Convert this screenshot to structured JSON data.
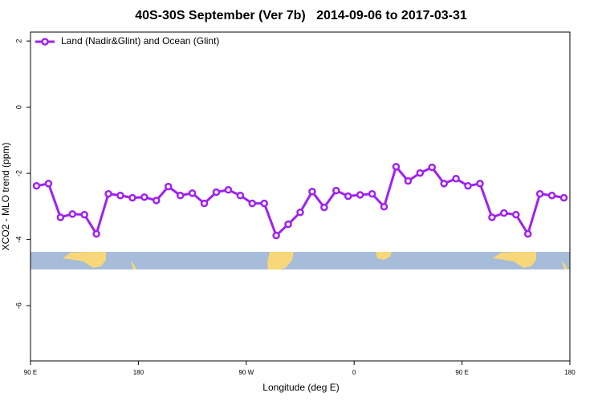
{
  "chart_data": {
    "type": "line",
    "title": "40S-30S September (Ver 7b)   2014-09-06 to 2017-03-31",
    "x_label": "Longitude (deg E)",
    "y_label": "XCO2 - MLO trend (ppm)",
    "x": [
      95,
      105,
      115,
      125,
      135,
      145,
      155,
      165,
      175,
      185,
      195,
      205,
      215,
      225,
      235,
      245,
      255,
      265,
      275,
      285,
      295,
      305,
      315,
      325,
      335,
      345,
      355,
      365,
      375,
      385,
      395,
      405,
      415,
      425,
      435,
      445,
      455,
      465,
      475,
      485,
      495,
      505,
      515,
      525,
      535
    ],
    "series": [
      {
        "name": "Land (Nadir&Glint) and Ocean (Glint)",
        "color": "#a020f0",
        "values": [
          -2.38,
          -2.31,
          -3.33,
          -3.23,
          -3.25,
          -3.83,
          -2.62,
          -2.67,
          -2.74,
          -2.72,
          -2.82,
          -2.4,
          -2.67,
          -2.6,
          -2.91,
          -2.57,
          -2.5,
          -2.67,
          -2.91,
          -2.91,
          -3.88,
          -3.54,
          -3.18,
          -2.55,
          -3.03,
          -2.52,
          -2.69,
          -2.65,
          -2.62,
          -3.01,
          -1.8,
          -2.23,
          -1.99,
          -1.82,
          -2.31,
          -2.16,
          -2.38,
          -2.31,
          -3.33,
          -3.2,
          -3.25,
          -3.83,
          -2.62,
          -2.67,
          -2.74
        ]
      }
    ],
    "xlim": [
      90,
      540
    ],
    "xticks": [
      {
        "value": 90,
        "label": "90 E"
      },
      {
        "value": 180,
        "label": "180"
      },
      {
        "value": 270,
        "label": "90 W"
      },
      {
        "value": 360,
        "label": "0"
      },
      {
        "value": 450,
        "label": "90 E"
      },
      {
        "value": 540,
        "label": "180"
      }
    ],
    "ylim": [
      -7.67,
      2.27
    ],
    "yticks": [
      -6,
      -4,
      -2,
      0,
      2
    ],
    "legend": "top-left"
  }
}
